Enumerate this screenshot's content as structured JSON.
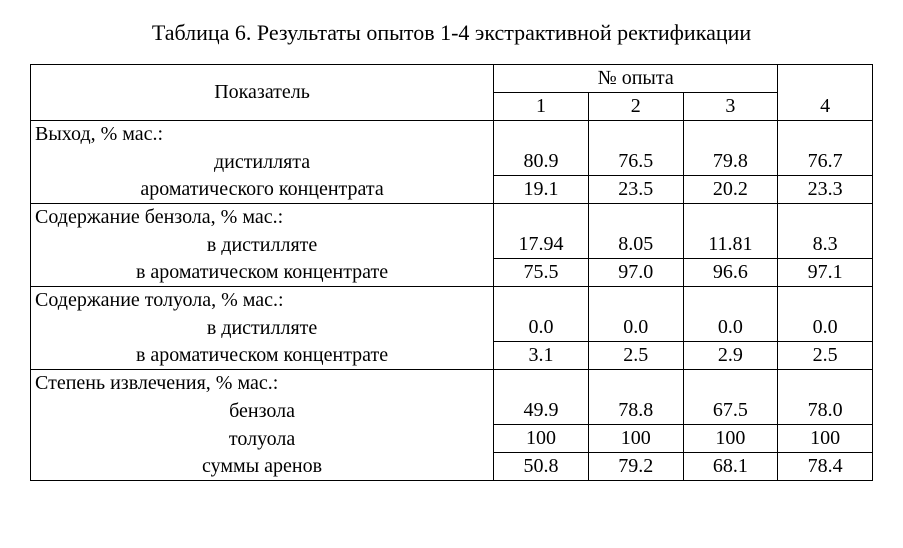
{
  "title": "Таблица 6. Результаты опытов 1-4 экстрактивной ректификации",
  "header": {
    "indicator": "Показатель",
    "experiment_no": "№ опыта",
    "cols": [
      "1",
      "2",
      "3",
      "4"
    ]
  },
  "groups": [
    {
      "label": "Выход, % мас.:",
      "rows": [
        {
          "label": "дистиллята",
          "v": [
            "80.9",
            "76.5",
            "79.8",
            "76.7"
          ]
        },
        {
          "label": "ароматического концентрата",
          "v": [
            "19.1",
            "23.5",
            "20.2",
            "23.3"
          ]
        }
      ]
    },
    {
      "label": "Содержание бензола, % мас.:",
      "rows": [
        {
          "label": "в дистилляте",
          "v": [
            "17.94",
            "8.05",
            "11.81",
            "8.3"
          ]
        },
        {
          "label": "в ароматическом концентрате",
          "v": [
            "75.5",
            "97.0",
            "96.6",
            "97.1"
          ]
        }
      ]
    },
    {
      "label": "Содержание толуола, % мас.:",
      "rows": [
        {
          "label": "в дистилляте",
          "v": [
            "0.0",
            "0.0",
            "0.0",
            "0.0"
          ]
        },
        {
          "label": "в ароматическом концентрате",
          "v": [
            "3.1",
            "2.5",
            "2.9",
            "2.5"
          ]
        }
      ]
    },
    {
      "label": "Степень извлечения, % мас.:",
      "rows": [
        {
          "label": "бензола",
          "v": [
            "49.9",
            "78.8",
            "67.5",
            "78.0"
          ]
        },
        {
          "label": "толуола",
          "v": [
            "100",
            "100",
            "100",
            "100"
          ]
        },
        {
          "label": "суммы аренов",
          "v": [
            "50.8",
            "79.2",
            "68.1",
            "78.4"
          ]
        }
      ]
    }
  ]
}
